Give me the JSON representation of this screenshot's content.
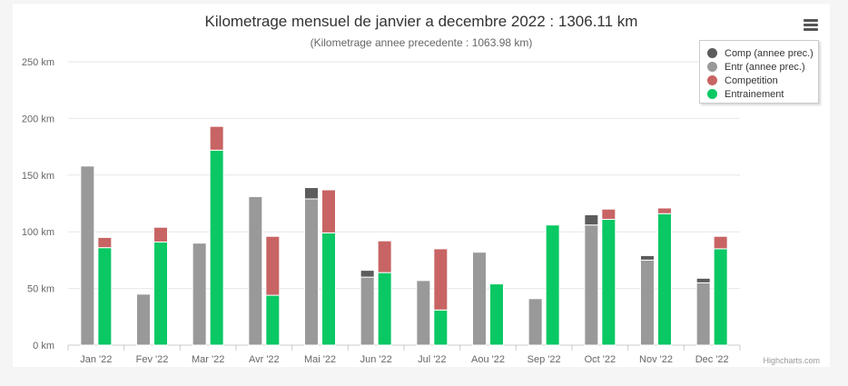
{
  "chart_data": {
    "type": "bar",
    "stacked": true,
    "title": "Kilometrage mensuel de janvier a decembre 2022 : 1306.11 km",
    "subtitle": "(Kilometrage annee precedente : 1063.98 km)",
    "categories": [
      "Jan '22",
      "Fev '22",
      "Mar '22",
      "Avr '22",
      "Mai '22",
      "Jun '22",
      "Jul '22",
      "Aou '22",
      "Sep '22",
      "Oct '22",
      "Nov '22",
      "Dec '22"
    ],
    "yticks": [
      "0 km",
      "50 km",
      "100 km",
      "150 km",
      "200 km",
      "250 km"
    ],
    "ylim": [
      0,
      250
    ],
    "grid": true,
    "legend_position": "top-right",
    "series": [
      {
        "name": "Comp (annee prec.)",
        "stack": "previous",
        "color": "#5c5c5c",
        "values": [
          0,
          0,
          0,
          0,
          10,
          6,
          0,
          0,
          0,
          9,
          4,
          4
        ]
      },
      {
        "name": "Entr (annee prec.)",
        "stack": "previous",
        "color": "#999999",
        "values": [
          158,
          45,
          90,
          131,
          129,
          60,
          57,
          82,
          41,
          106,
          75,
          55
        ]
      },
      {
        "name": "Competition",
        "stack": "current",
        "color": "#c86464",
        "values": [
          9,
          13,
          21,
          52,
          38,
          28,
          54,
          0,
          0,
          9,
          5,
          11
        ]
      },
      {
        "name": "Entrainement",
        "stack": "current",
        "color": "#0ac864",
        "values": [
          86,
          91,
          172,
          44,
          99,
          64,
          31,
          54,
          106,
          111,
          116,
          85
        ]
      }
    ],
    "credits": "Highcharts.com"
  }
}
